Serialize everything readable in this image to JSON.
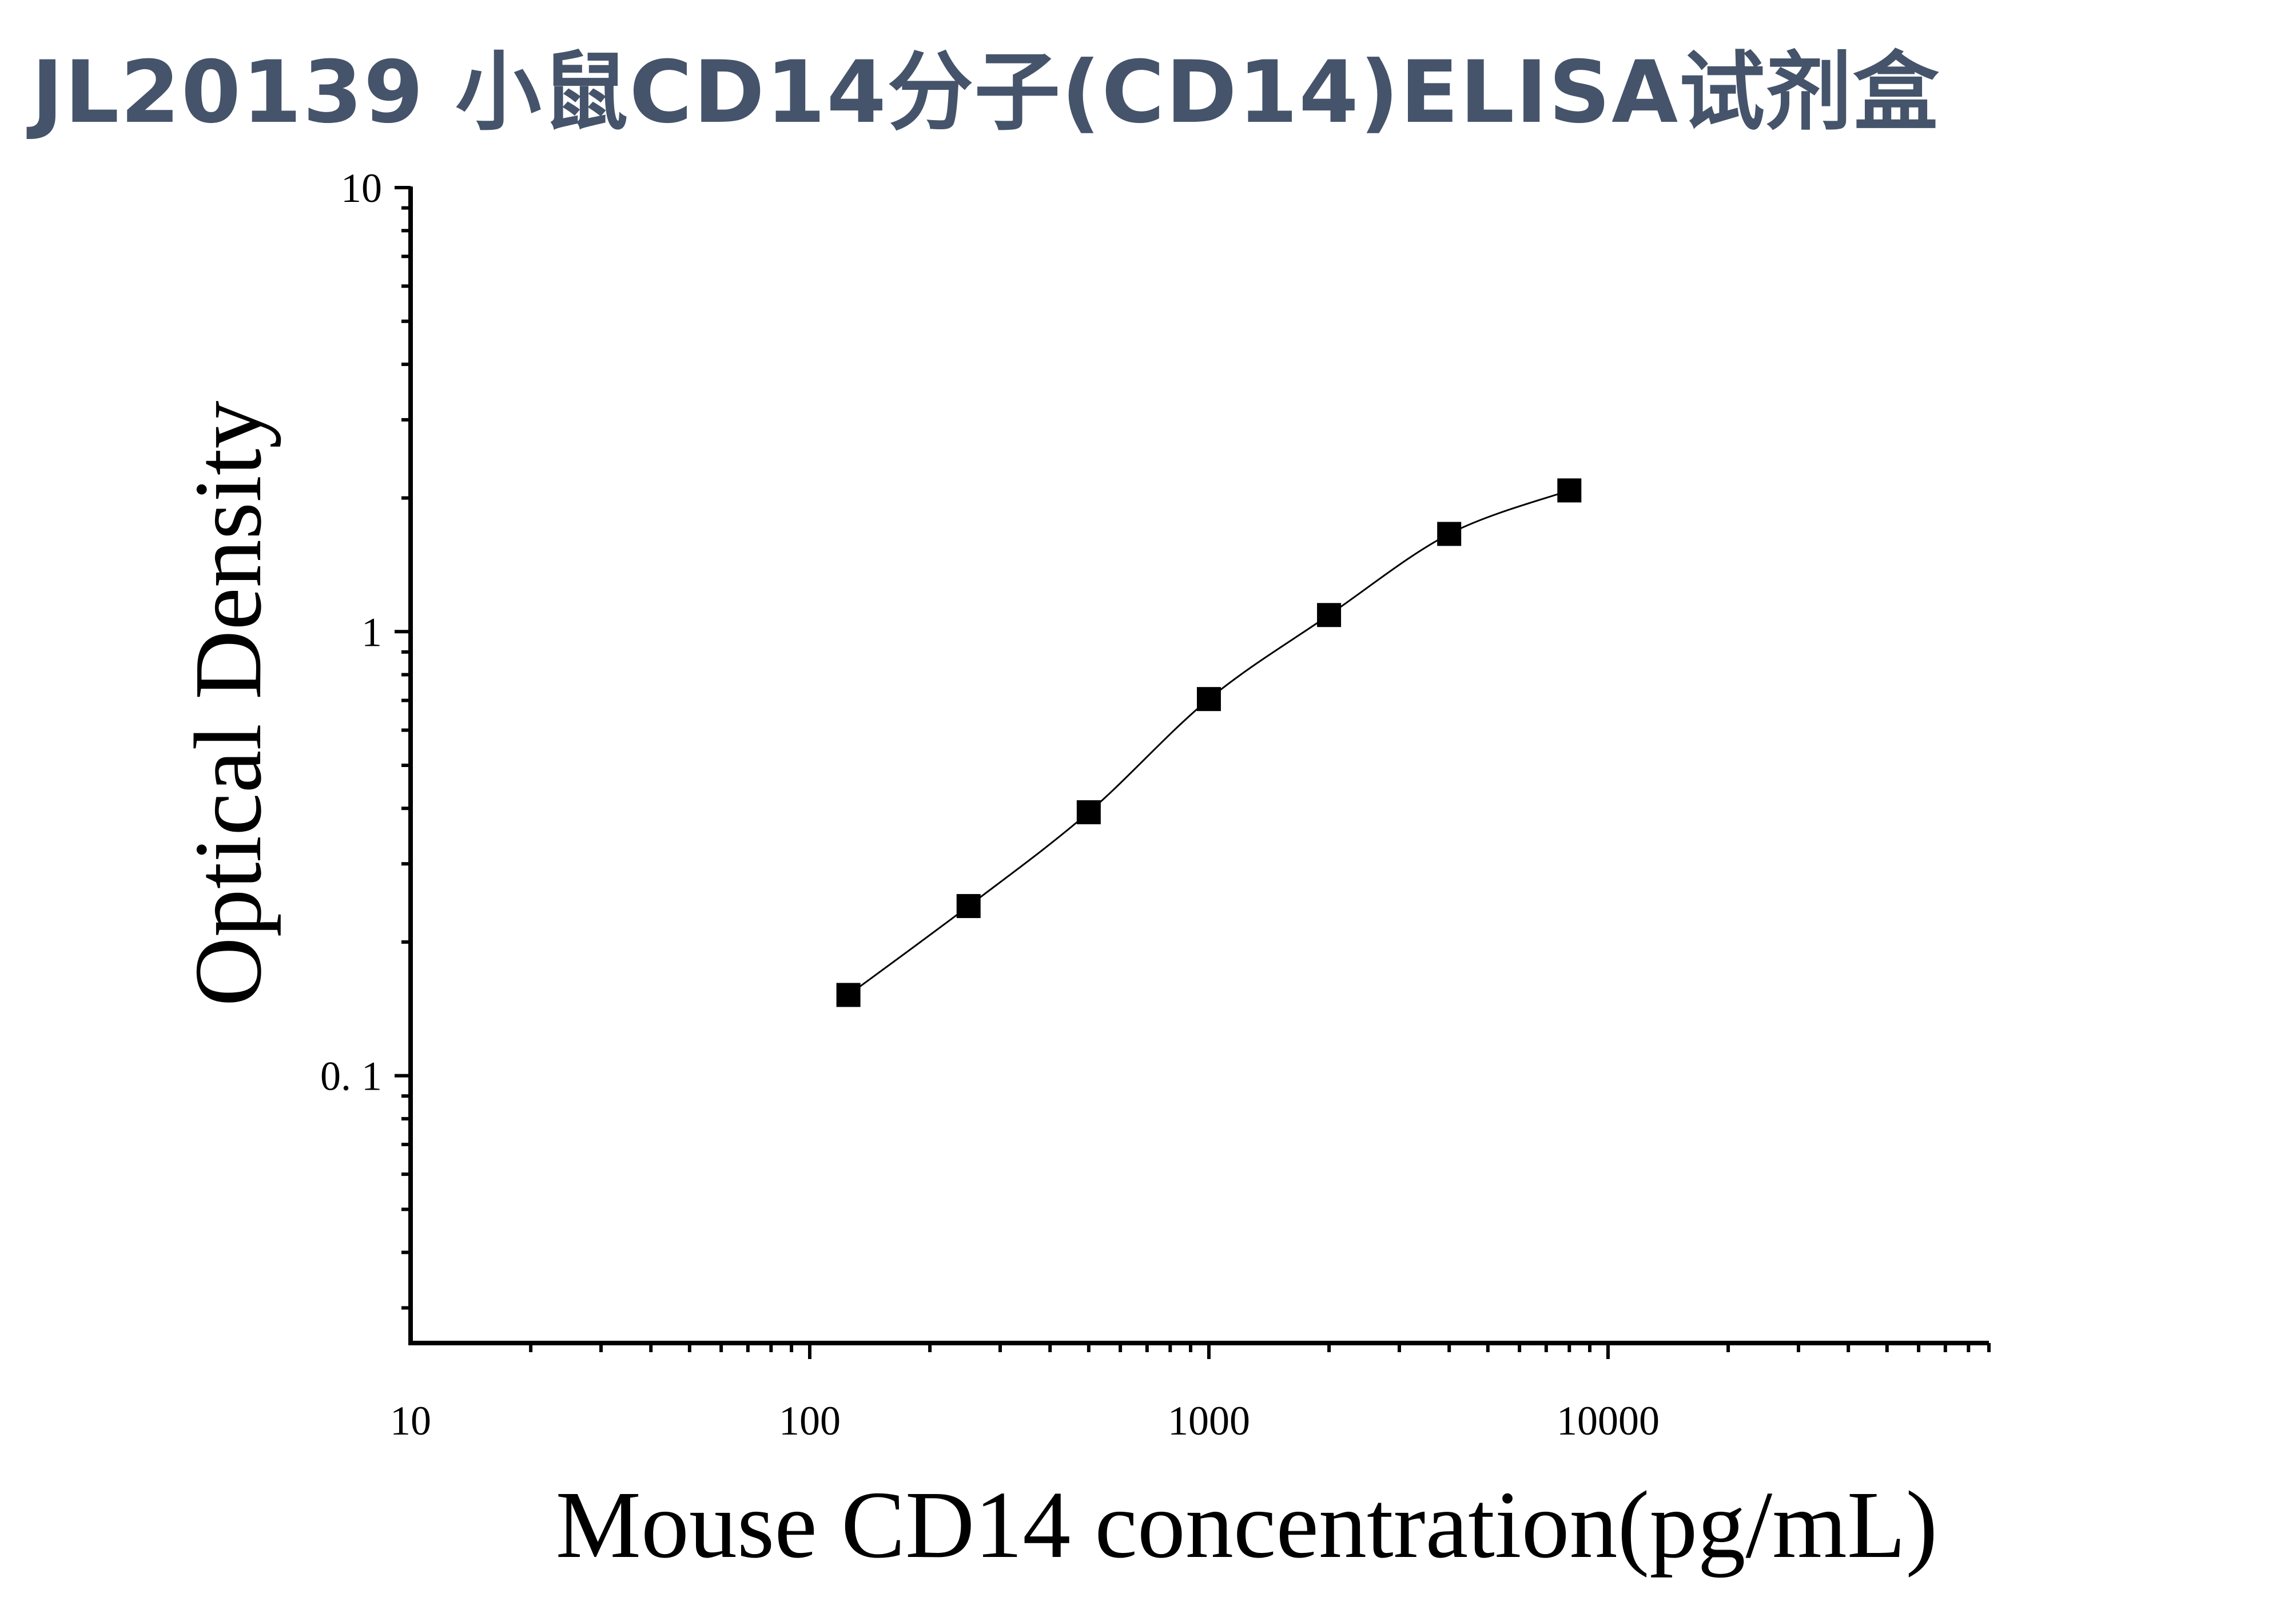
{
  "page": {
    "title": "JL20139 小鼠CD14分子(CD14)ELISA试剂盒"
  },
  "chart_data": {
    "type": "scatter",
    "title": "JL20139 小鼠CD14分子(CD14)ELISA试剂盒",
    "xlabel": "Mouse CD14 concentration(pg/mL)",
    "ylabel": "Optical Density",
    "x_scale": "log",
    "y_scale": "log",
    "xlim": [
      10,
      90000
    ],
    "ylim": [
      0.025,
      10
    ],
    "x_tick_labels": [
      "10",
      "100",
      "1000",
      "10000"
    ],
    "y_tick_labels": [
      "0. 1",
      "1",
      "10"
    ],
    "grid": false,
    "series": [
      {
        "x": [
          125,
          250,
          500,
          1000,
          2000,
          4000,
          8000
        ],
        "y": [
          0.152,
          0.241,
          0.392,
          0.705,
          1.09,
          1.66,
          2.08
        ],
        "marker": "square",
        "fit_line": true
      }
    ],
    "colors": {
      "marker": "#000000",
      "line": "#000000",
      "axis": "#000000",
      "title": "#45546b"
    }
  }
}
